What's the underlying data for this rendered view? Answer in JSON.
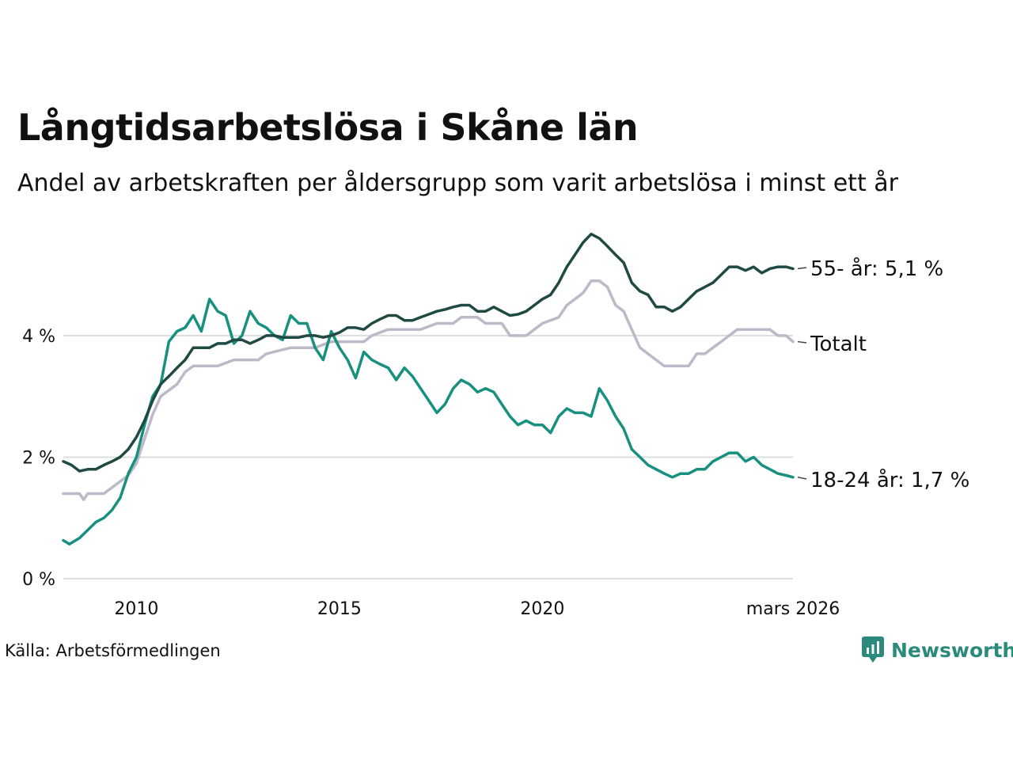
{
  "header": {
    "title": "Långtidsarbetslösa i Skåne län",
    "subtitle": "Andel av arbetskraften per åldersgrupp som varit arbetslösa i minst ett år"
  },
  "footer": {
    "source": "Källa: Arbetsförmedlingen",
    "brand": "Newsworthy"
  },
  "colors": {
    "series_55": "#1f4a43",
    "series_total": "#bdb9c8",
    "series_18_24": "#17907f",
    "grid": "#dddddd",
    "brand": "#2a8a7c"
  },
  "chart_data": {
    "type": "line",
    "title": "Långtidsarbetslösa i Skåne län",
    "subtitle": "Andel av arbetskraften per åldersgrupp som varit arbetslösa i minst ett år",
    "xlabel": "",
    "ylabel": "",
    "xlim": [
      2008.2,
      2026.17
    ],
    "ylim": [
      0,
      5.9
    ],
    "x_ticks": [
      2010,
      2015,
      2020,
      2026.17
    ],
    "x_tick_labels": [
      "2010",
      "2015",
      "2020",
      "mars 2026"
    ],
    "y_ticks": [
      0,
      2,
      4
    ],
    "y_tick_labels": [
      "0 %",
      "2 %",
      "4 %"
    ],
    "grid": true,
    "series": [
      {
        "name": "55- år",
        "end_label": "55- år: 5,1 %",
        "color_key": "series_55",
        "points": [
          [
            2008.2,
            1.93
          ],
          [
            2008.4,
            1.87
          ],
          [
            2008.6,
            1.77
          ],
          [
            2008.8,
            1.8
          ],
          [
            2009.0,
            1.8
          ],
          [
            2009.2,
            1.87
          ],
          [
            2009.4,
            1.93
          ],
          [
            2009.6,
            2.0
          ],
          [
            2009.8,
            2.13
          ],
          [
            2010.0,
            2.33
          ],
          [
            2010.2,
            2.6
          ],
          [
            2010.4,
            2.93
          ],
          [
            2010.6,
            3.2
          ],
          [
            2010.8,
            3.33
          ],
          [
            2011.0,
            3.47
          ],
          [
            2011.2,
            3.6
          ],
          [
            2011.4,
            3.8
          ],
          [
            2011.6,
            3.8
          ],
          [
            2011.8,
            3.8
          ],
          [
            2012.0,
            3.87
          ],
          [
            2012.2,
            3.87
          ],
          [
            2012.4,
            3.93
          ],
          [
            2012.6,
            3.93
          ],
          [
            2012.8,
            3.87
          ],
          [
            2013.0,
            3.93
          ],
          [
            2013.2,
            4.0
          ],
          [
            2013.4,
            4.0
          ],
          [
            2013.6,
            3.97
          ],
          [
            2013.8,
            3.97
          ],
          [
            2014.0,
            3.97
          ],
          [
            2014.2,
            4.0
          ],
          [
            2014.4,
            4.0
          ],
          [
            2014.6,
            3.97
          ],
          [
            2014.8,
            4.0
          ],
          [
            2015.0,
            4.05
          ],
          [
            2015.2,
            4.13
          ],
          [
            2015.4,
            4.13
          ],
          [
            2015.6,
            4.1
          ],
          [
            2015.8,
            4.2
          ],
          [
            2016.0,
            4.27
          ],
          [
            2016.2,
            4.33
          ],
          [
            2016.4,
            4.33
          ],
          [
            2016.6,
            4.25
          ],
          [
            2016.8,
            4.25
          ],
          [
            2017.0,
            4.3
          ],
          [
            2017.2,
            4.35
          ],
          [
            2017.4,
            4.4
          ],
          [
            2017.6,
            4.43
          ],
          [
            2017.8,
            4.47
          ],
          [
            2018.0,
            4.5
          ],
          [
            2018.2,
            4.5
          ],
          [
            2018.4,
            4.4
          ],
          [
            2018.6,
            4.4
          ],
          [
            2018.8,
            4.47
          ],
          [
            2019.0,
            4.4
          ],
          [
            2019.2,
            4.33
          ],
          [
            2019.4,
            4.35
          ],
          [
            2019.6,
            4.4
          ],
          [
            2019.8,
            4.5
          ],
          [
            2020.0,
            4.6
          ],
          [
            2020.2,
            4.67
          ],
          [
            2020.4,
            4.87
          ],
          [
            2020.6,
            5.13
          ],
          [
            2020.8,
            5.33
          ],
          [
            2021.0,
            5.53
          ],
          [
            2021.2,
            5.67
          ],
          [
            2021.4,
            5.6
          ],
          [
            2021.6,
            5.47
          ],
          [
            2021.8,
            5.33
          ],
          [
            2022.0,
            5.2
          ],
          [
            2022.2,
            4.87
          ],
          [
            2022.4,
            4.73
          ],
          [
            2022.6,
            4.67
          ],
          [
            2022.8,
            4.47
          ],
          [
            2023.0,
            4.47
          ],
          [
            2023.2,
            4.4
          ],
          [
            2023.4,
            4.47
          ],
          [
            2023.6,
            4.6
          ],
          [
            2023.8,
            4.73
          ],
          [
            2024.0,
            4.8
          ],
          [
            2024.2,
            4.87
          ],
          [
            2024.4,
            5.0
          ],
          [
            2024.6,
            5.13
          ],
          [
            2024.8,
            5.13
          ],
          [
            2025.0,
            5.07
          ],
          [
            2025.2,
            5.13
          ],
          [
            2025.4,
            5.03
          ],
          [
            2025.6,
            5.1
          ],
          [
            2025.8,
            5.13
          ],
          [
            2026.0,
            5.13
          ],
          [
            2026.17,
            5.1
          ]
        ]
      },
      {
        "name": "Totalt",
        "end_label": "Totalt",
        "color_key": "series_total",
        "points": [
          [
            2008.2,
            1.4
          ],
          [
            2008.6,
            1.4
          ],
          [
            2008.7,
            1.3
          ],
          [
            2008.8,
            1.4
          ],
          [
            2009.2,
            1.4
          ],
          [
            2009.4,
            1.5
          ],
          [
            2009.6,
            1.6
          ],
          [
            2009.8,
            1.7
          ],
          [
            2010.0,
            1.9
          ],
          [
            2010.2,
            2.3
          ],
          [
            2010.4,
            2.7
          ],
          [
            2010.6,
            3.0
          ],
          [
            2010.8,
            3.1
          ],
          [
            2011.0,
            3.2
          ],
          [
            2011.2,
            3.4
          ],
          [
            2011.4,
            3.5
          ],
          [
            2012.0,
            3.5
          ],
          [
            2012.4,
            3.6
          ],
          [
            2013.0,
            3.6
          ],
          [
            2013.2,
            3.7
          ],
          [
            2013.8,
            3.8
          ],
          [
            2014.0,
            3.8
          ],
          [
            2014.4,
            3.8
          ],
          [
            2014.8,
            3.9
          ],
          [
            2015.6,
            3.9
          ],
          [
            2015.8,
            4.0
          ],
          [
            2016.2,
            4.1
          ],
          [
            2016.6,
            4.1
          ],
          [
            2017.0,
            4.1
          ],
          [
            2017.4,
            4.2
          ],
          [
            2017.8,
            4.2
          ],
          [
            2018.0,
            4.3
          ],
          [
            2018.4,
            4.3
          ],
          [
            2018.6,
            4.2
          ],
          [
            2019.0,
            4.2
          ],
          [
            2019.2,
            4.0
          ],
          [
            2019.6,
            4.0
          ],
          [
            2019.8,
            4.1
          ],
          [
            2020.0,
            4.2
          ],
          [
            2020.4,
            4.3
          ],
          [
            2020.6,
            4.5
          ],
          [
            2020.8,
            4.6
          ],
          [
            2021.0,
            4.7
          ],
          [
            2021.2,
            4.9
          ],
          [
            2021.4,
            4.9
          ],
          [
            2021.6,
            4.8
          ],
          [
            2021.8,
            4.5
          ],
          [
            2022.0,
            4.4
          ],
          [
            2022.2,
            4.1
          ],
          [
            2022.4,
            3.8
          ],
          [
            2022.6,
            3.7
          ],
          [
            2022.8,
            3.6
          ],
          [
            2023.0,
            3.5
          ],
          [
            2023.6,
            3.5
          ],
          [
            2023.8,
            3.7
          ],
          [
            2024.0,
            3.7
          ],
          [
            2024.2,
            3.8
          ],
          [
            2024.4,
            3.9
          ],
          [
            2024.6,
            4.0
          ],
          [
            2024.8,
            4.1
          ],
          [
            2025.6,
            4.1
          ],
          [
            2025.8,
            4.0
          ],
          [
            2026.0,
            4.0
          ],
          [
            2026.17,
            3.9
          ]
        ]
      },
      {
        "name": "18-24 år",
        "end_label": "18-24 år: 1,7 %",
        "color_key": "series_18_24",
        "points": [
          [
            2008.2,
            0.63
          ],
          [
            2008.35,
            0.57
          ],
          [
            2008.6,
            0.67
          ],
          [
            2008.8,
            0.8
          ],
          [
            2009.0,
            0.93
          ],
          [
            2009.2,
            1.0
          ],
          [
            2009.4,
            1.13
          ],
          [
            2009.6,
            1.33
          ],
          [
            2009.8,
            1.73
          ],
          [
            2010.0,
            2.0
          ],
          [
            2010.2,
            2.53
          ],
          [
            2010.4,
            3.0
          ],
          [
            2010.6,
            3.2
          ],
          [
            2010.8,
            3.9
          ],
          [
            2011.0,
            4.07
          ],
          [
            2011.2,
            4.13
          ],
          [
            2011.4,
            4.33
          ],
          [
            2011.6,
            4.07
          ],
          [
            2011.8,
            4.6
          ],
          [
            2012.0,
            4.4
          ],
          [
            2012.2,
            4.33
          ],
          [
            2012.4,
            3.87
          ],
          [
            2012.6,
            4.0
          ],
          [
            2012.8,
            4.4
          ],
          [
            2013.0,
            4.2
          ],
          [
            2013.2,
            4.13
          ],
          [
            2013.4,
            4.0
          ],
          [
            2013.6,
            3.93
          ],
          [
            2013.8,
            4.33
          ],
          [
            2014.0,
            4.2
          ],
          [
            2014.2,
            4.2
          ],
          [
            2014.4,
            3.8
          ],
          [
            2014.6,
            3.6
          ],
          [
            2014.8,
            4.07
          ],
          [
            2015.0,
            3.8
          ],
          [
            2015.2,
            3.6
          ],
          [
            2015.4,
            3.3
          ],
          [
            2015.6,
            3.73
          ],
          [
            2015.8,
            3.6
          ],
          [
            2016.0,
            3.53
          ],
          [
            2016.2,
            3.47
          ],
          [
            2016.4,
            3.27
          ],
          [
            2016.6,
            3.47
          ],
          [
            2016.8,
            3.33
          ],
          [
            2017.0,
            3.13
          ],
          [
            2017.2,
            2.93
          ],
          [
            2017.4,
            2.73
          ],
          [
            2017.6,
            2.87
          ],
          [
            2017.8,
            3.13
          ],
          [
            2018.0,
            3.27
          ],
          [
            2018.2,
            3.2
          ],
          [
            2018.4,
            3.07
          ],
          [
            2018.6,
            3.13
          ],
          [
            2018.8,
            3.07
          ],
          [
            2019.0,
            2.87
          ],
          [
            2019.2,
            2.67
          ],
          [
            2019.4,
            2.53
          ],
          [
            2019.6,
            2.6
          ],
          [
            2019.8,
            2.53
          ],
          [
            2020.0,
            2.53
          ],
          [
            2020.2,
            2.4
          ],
          [
            2020.4,
            2.67
          ],
          [
            2020.6,
            2.8
          ],
          [
            2020.8,
            2.73
          ],
          [
            2021.0,
            2.73
          ],
          [
            2021.2,
            2.67
          ],
          [
            2021.4,
            3.13
          ],
          [
            2021.6,
            2.93
          ],
          [
            2021.8,
            2.67
          ],
          [
            2022.0,
            2.47
          ],
          [
            2022.2,
            2.13
          ],
          [
            2022.4,
            2.0
          ],
          [
            2022.6,
            1.87
          ],
          [
            2022.8,
            1.8
          ],
          [
            2023.0,
            1.73
          ],
          [
            2023.2,
            1.67
          ],
          [
            2023.4,
            1.73
          ],
          [
            2023.6,
            1.73
          ],
          [
            2023.8,
            1.8
          ],
          [
            2024.0,
            1.8
          ],
          [
            2024.2,
            1.93
          ],
          [
            2024.4,
            2.0
          ],
          [
            2024.6,
            2.07
          ],
          [
            2024.8,
            2.07
          ],
          [
            2025.0,
            1.93
          ],
          [
            2025.2,
            2.0
          ],
          [
            2025.4,
            1.87
          ],
          [
            2025.6,
            1.8
          ],
          [
            2025.8,
            1.73
          ],
          [
            2026.0,
            1.7
          ],
          [
            2026.17,
            1.67
          ]
        ]
      }
    ]
  }
}
